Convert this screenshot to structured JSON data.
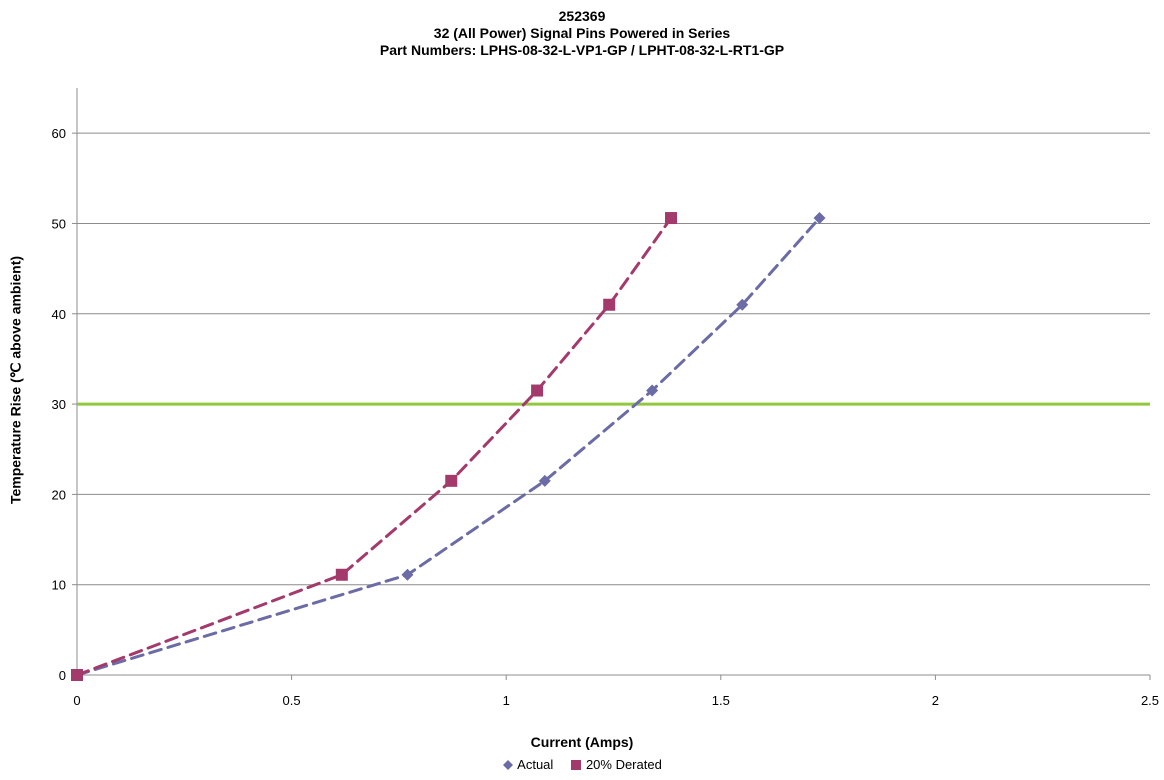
{
  "chart_data": {
    "type": "line",
    "title_lines": [
      "252369",
      "32 (All Power) Signal Pins Powered in Series",
      "Part Numbers: LPHS-08-32-L-VP1-GP / LPHT-08-32-L-RT1-GP"
    ],
    "xlabel": "Current (Amps)",
    "ylabel": "Temperature Rise (℃ above ambient)",
    "xlim": [
      0,
      2.5
    ],
    "ylim": [
      0,
      65
    ],
    "x_ticks": [
      "0",
      "0.5",
      "1",
      "1.5",
      "2",
      "2.5"
    ],
    "y_ticks": [
      "0",
      "10",
      "20",
      "30",
      "40",
      "50",
      "60"
    ],
    "x_tick_values": [
      0,
      0.5,
      1,
      1.5,
      2,
      2.5
    ],
    "y_tick_values": [
      0,
      10,
      20,
      30,
      40,
      50,
      60
    ],
    "grid": "horizontal",
    "legend_position": "bottom",
    "series": [
      {
        "name": "Actual",
        "color": "#6b6ba6",
        "marker": "diamond",
        "x": [
          0,
          0.77,
          1.09,
          1.34,
          1.55,
          1.73
        ],
        "y": [
          0,
          11.1,
          21.5,
          31.5,
          41.0,
          50.6
        ]
      },
      {
        "name": "20% Derated",
        "color": "#a33a6b",
        "marker": "square",
        "x": [
          0,
          0.617,
          0.872,
          1.072,
          1.24,
          1.384
        ],
        "y": [
          0,
          11.1,
          21.5,
          31.5,
          41.0,
          50.6
        ]
      }
    ],
    "reference_line": {
      "y": 30,
      "color": "#92c83e"
    }
  }
}
